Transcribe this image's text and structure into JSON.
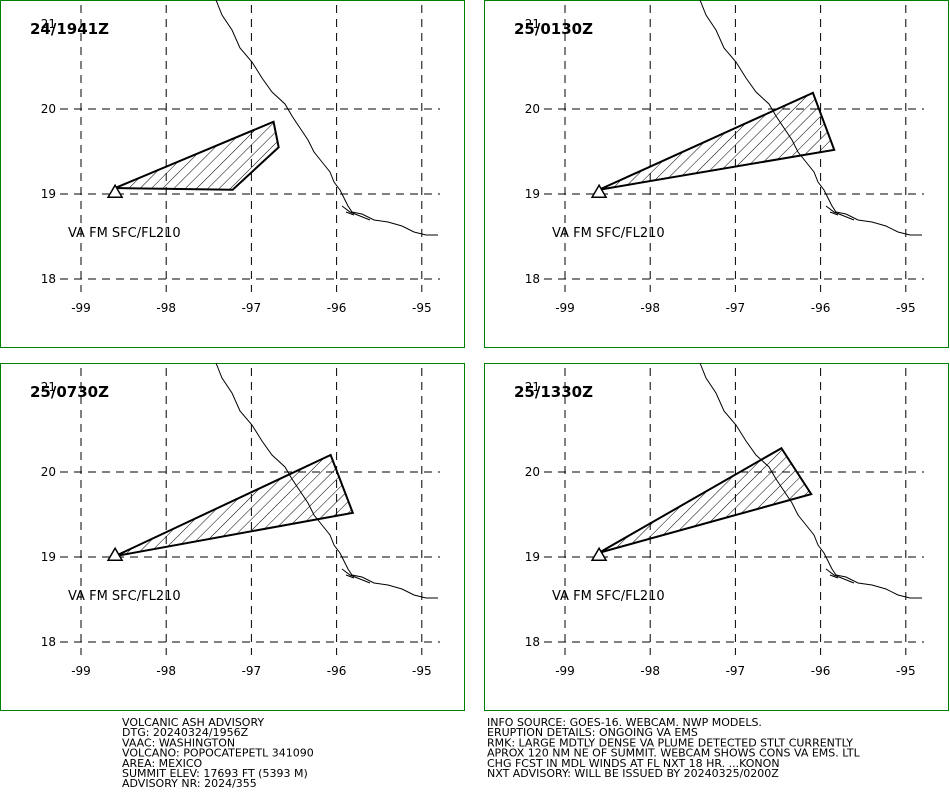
{
  "panels": [
    {
      "time": "24/1941Z",
      "level": "VA FM SFC/FL210",
      "polygon": [
        [
          -98.6,
          19.07
        ],
        [
          -96.74,
          19.85
        ],
        [
          -96.68,
          19.55
        ],
        [
          -97.22,
          19.05
        ]
      ]
    },
    {
      "time": "25/0130Z",
      "level": "VA FM SFC/FL210",
      "polygon": [
        [
          -98.6,
          19.05
        ],
        [
          -96.09,
          20.19
        ],
        [
          -95.84,
          19.52
        ]
      ]
    },
    {
      "time": "25/0730Z",
      "level": "VA FM SFC/FL210",
      "polygon": [
        [
          -98.6,
          19.01
        ],
        [
          -96.07,
          20.2
        ],
        [
          -95.81,
          19.52
        ]
      ]
    },
    {
      "time": "25/1330Z",
      "level": "VA FM SFC/FL210",
      "polygon": [
        [
          -98.6,
          19.05
        ],
        [
          -96.46,
          20.28
        ],
        [
          -96.11,
          19.74
        ]
      ]
    }
  ],
  "volcano": [
    -98.6,
    19.02
  ],
  "lon_ticks": [
    -99,
    -98,
    -97,
    -96,
    -95
  ],
  "lat_ticks": [
    18,
    19,
    20,
    21
  ],
  "text_left": [
    "VOLCANIC ASH ADVISORY",
    "DTG: 20240324/1956Z",
    "VAAC: WASHINGTON",
    "VOLCANO: POPOCATEPETL 341090",
    "AREA: MEXICO",
    "SUMMIT ELEV: 17693 FT (5393 M)",
    "ADVISORY NR: 2024/355"
  ],
  "text_right": [
    "INFO SOURCE: GOES-16. WEBCAM. NWP MODELS.",
    "ERUPTION DETAILS: ONGOING VA EMS",
    "RMK: LARGE MDTLY DENSE VA PLUME DETECTED STLT CURRENTLY",
    "APROX 120 NM NE OF SUMMIT. WEBCAM SHOWS CONS VA EMS. LTL",
    "CHG FCST IN MDL WINDS AT FL NXT 18 HR. ...KONON",
    "NXT ADVISORY: WILL BE ISSUED BY 20240325/0200Z"
  ]
}
